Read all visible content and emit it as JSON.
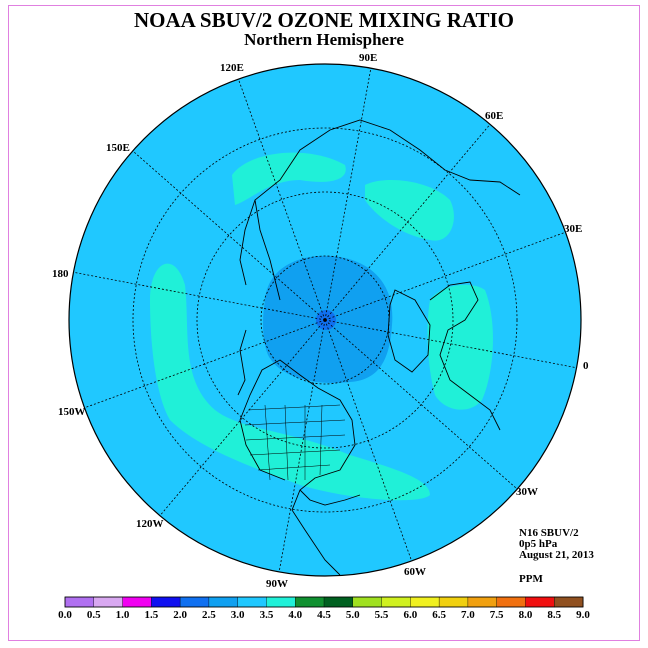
{
  "title": "NOAA SBUV/2 OZONE MIXING RATIO",
  "subtitle": "Northern Hemisphere",
  "longitude_labels": [
    "90E",
    "60E",
    "30E",
    "0",
    "30W",
    "60W",
    "90W",
    "120W",
    "150W",
    "180",
    "150E",
    "120E"
  ],
  "info": {
    "instrument": "N16 SBUV/2",
    "level": "0p5 hPa",
    "date": "August 21, 2013",
    "units": "PPM"
  },
  "colorbar": {
    "ticks": [
      "0.0",
      "0.5",
      "1.0",
      "1.5",
      "2.0",
      "2.5",
      "3.0",
      "3.5",
      "4.0",
      "4.5",
      "5.0",
      "5.5",
      "6.0",
      "6.5",
      "7.0",
      "7.5",
      "8.0",
      "8.5",
      "9.0"
    ],
    "colors": [
      "#b070f0",
      "#d8a8f0",
      "#f000f0",
      "#1010f0",
      "#1070f0",
      "#10a0f0",
      "#20c8ff",
      "#20f0d8",
      "#109030",
      "#006020",
      "#a0e020",
      "#d0f020",
      "#f0f020",
      "#f0d010",
      "#f0a010",
      "#f07010",
      "#f01010",
      "#905020"
    ]
  },
  "map_colors": {
    "background": "#20c8ff",
    "polar": "#10a0f0",
    "pole": "#1070f0",
    "band": "#20f0d8",
    "coast": "#000000"
  }
}
